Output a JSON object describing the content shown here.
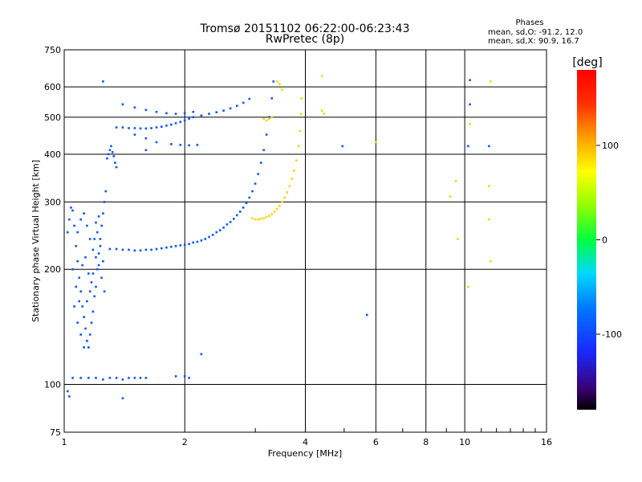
{
  "chart_data": {
    "type": "scatter",
    "title": "Tromsø 20151102 06:22:00-06:23:43",
    "subtitle": "RwPretec (8p)",
    "xlabel": "Frequency [MHz]",
    "ylabel": "Stationary phase Virtual Height [km]",
    "x_scale": "log",
    "y_scale": "log",
    "xlim": [
      1,
      16
    ],
    "ylim": [
      75,
      750
    ],
    "x_ticks": [
      1,
      2,
      4,
      6,
      8,
      10,
      16
    ],
    "x_tick_labels": [
      "1",
      "2",
      "4",
      "6",
      "8",
      "10",
      "16"
    ],
    "y_ticks": [
      75,
      100,
      200,
      300,
      400,
      500,
      600,
      750
    ],
    "y_tick_labels": [
      "75",
      "100",
      "200",
      "300",
      "400",
      "500",
      "600",
      "750"
    ],
    "grid": true,
    "info": {
      "heading": "Phases",
      "line1": "mean, sd,O: -91.2, 12.0",
      "line2": "mean, sd,X:  90.9, 16.7"
    },
    "colorbar": {
      "label": "[deg]",
      "range": [
        -180,
        180
      ],
      "ticks": [
        100,
        0,
        -100
      ],
      "tick_labels": [
        "100",
        "0",
        "-100"
      ]
    },
    "series": [
      {
        "name": "O",
        "phase_deg": -91.2,
        "points": [
          [
            1.02,
            250
          ],
          [
            1.03,
            270
          ],
          [
            1.04,
            290
          ],
          [
            1.05,
            285
          ],
          [
            1.06,
            260
          ],
          [
            1.07,
            230
          ],
          [
            1.08,
            210
          ],
          [
            1.09,
            190
          ],
          [
            1.1,
            175
          ],
          [
            1.11,
            160
          ],
          [
            1.12,
            150
          ],
          [
            1.13,
            140
          ],
          [
            1.14,
            130
          ],
          [
            1.15,
            125
          ],
          [
            1.16,
            135
          ],
          [
            1.17,
            145
          ],
          [
            1.18,
            155
          ],
          [
            1.19,
            170
          ],
          [
            1.2,
            180
          ],
          [
            1.21,
            200
          ],
          [
            1.22,
            220
          ],
          [
            1.23,
            240
          ],
          [
            1.24,
            260
          ],
          [
            1.25,
            280
          ],
          [
            1.26,
            300
          ],
          [
            1.27,
            320
          ],
          [
            1.05,
            200
          ],
          [
            1.07,
            180
          ],
          [
            1.09,
            165
          ],
          [
            1.11,
            205
          ],
          [
            1.13,
            215
          ],
          [
            1.15,
            195
          ],
          [
            1.17,
            185
          ],
          [
            1.19,
            240
          ],
          [
            1.21,
            250
          ],
          [
            1.23,
            230
          ],
          [
            1.25,
            210
          ],
          [
            1.08,
            250
          ],
          [
            1.1,
            270
          ],
          [
            1.12,
            280
          ],
          [
            1.14,
            260
          ],
          [
            1.16,
            240
          ],
          [
            1.18,
            225
          ],
          [
            1.2,
            215
          ],
          [
            1.22,
            205
          ],
          [
            1.24,
            190
          ],
          [
            1.26,
            175
          ],
          [
            1.06,
            160
          ],
          [
            1.08,
            145
          ],
          [
            1.1,
            135
          ],
          [
            1.12,
            125
          ],
          [
            1.14,
            165
          ],
          [
            1.16,
            175
          ],
          [
            1.18,
            195
          ],
          [
            1.2,
            265
          ],
          [
            1.22,
            275
          ],
          [
            1.28,
            390
          ],
          [
            1.29,
            400
          ],
          [
            1.3,
            410
          ],
          [
            1.31,
            420
          ],
          [
            1.32,
            405
          ],
          [
            1.33,
            395
          ],
          [
            1.34,
            380
          ],
          [
            1.35,
            370
          ],
          [
            1.3,
            226
          ],
          [
            1.35,
            226
          ],
          [
            1.4,
            225
          ],
          [
            1.45,
            225
          ],
          [
            1.5,
            224
          ],
          [
            1.55,
            224
          ],
          [
            1.6,
            225
          ],
          [
            1.65,
            225
          ],
          [
            1.7,
            226
          ],
          [
            1.75,
            227
          ],
          [
            1.8,
            228
          ],
          [
            1.85,
            229
          ],
          [
            1.9,
            230
          ],
          [
            1.95,
            231
          ],
          [
            2.0,
            232
          ],
          [
            2.05,
            233
          ],
          [
            2.1,
            235
          ],
          [
            2.15,
            236
          ],
          [
            2.2,
            238
          ],
          [
            2.25,
            240
          ],
          [
            2.3,
            243
          ],
          [
            2.35,
            246
          ],
          [
            2.4,
            250
          ],
          [
            2.45,
            253
          ],
          [
            2.5,
            257
          ],
          [
            2.55,
            262
          ],
          [
            2.6,
            266
          ],
          [
            2.65,
            271
          ],
          [
            2.7,
            277
          ],
          [
            2.75,
            283
          ],
          [
            2.8,
            290
          ],
          [
            2.85,
            298
          ],
          [
            2.9,
            308
          ],
          [
            2.95,
            320
          ],
          [
            3.0,
            335
          ],
          [
            3.05,
            355
          ],
          [
            3.1,
            380
          ],
          [
            3.15,
            410
          ],
          [
            3.2,
            450
          ],
          [
            3.25,
            500
          ],
          [
            3.3,
            560
          ],
          [
            3.33,
            620
          ],
          [
            1.35,
            470
          ],
          [
            1.4,
            470
          ],
          [
            1.45,
            468
          ],
          [
            1.5,
            468
          ],
          [
            1.55,
            467
          ],
          [
            1.6,
            467
          ],
          [
            1.65,
            468
          ],
          [
            1.7,
            470
          ],
          [
            1.75,
            472
          ],
          [
            1.8,
            475
          ],
          [
            1.85,
            478
          ],
          [
            1.9,
            482
          ],
          [
            1.95,
            486
          ],
          [
            2.0,
            490
          ],
          [
            2.05,
            495
          ],
          [
            2.1,
            500
          ],
          [
            2.2,
            505
          ],
          [
            2.3,
            510
          ],
          [
            2.4,
            515
          ],
          [
            2.5,
            520
          ],
          [
            2.6,
            527
          ],
          [
            2.7,
            535
          ],
          [
            2.8,
            545
          ],
          [
            2.9,
            558
          ],
          [
            1.4,
            540
          ],
          [
            1.5,
            530
          ],
          [
            1.6,
            522
          ],
          [
            1.7,
            516
          ],
          [
            1.8,
            512
          ],
          [
            1.9,
            510
          ],
          [
            2.0,
            512
          ],
          [
            2.1,
            516
          ],
          [
            1.85,
            425
          ],
          [
            1.95,
            423
          ],
          [
            2.05,
            422
          ],
          [
            2.15,
            423
          ],
          [
            1.7,
            430
          ],
          [
            1.6,
            440
          ],
          [
            1.5,
            450
          ],
          [
            1.05,
            104
          ],
          [
            1.1,
            104
          ],
          [
            1.15,
            104
          ],
          [
            1.2,
            104
          ],
          [
            1.25,
            103
          ],
          [
            1.3,
            104
          ],
          [
            1.35,
            104
          ],
          [
            1.4,
            103
          ],
          [
            1.45,
            104
          ],
          [
            1.5,
            104
          ],
          [
            1.55,
            104
          ],
          [
            1.6,
            104
          ],
          [
            1.9,
            105
          ],
          [
            2.0,
            105
          ],
          [
            2.05,
            104
          ],
          [
            1.02,
            96
          ],
          [
            1.03,
            93
          ],
          [
            1.4,
            92
          ],
          [
            1.25,
            620
          ],
          [
            1.6,
            410
          ],
          [
            2.2,
            120
          ],
          [
            4.95,
            420
          ],
          [
            5.7,
            152
          ],
          [
            10.3,
            625
          ],
          [
            10.2,
            420
          ],
          [
            11.5,
            420
          ],
          [
            10.3,
            540
          ]
        ]
      },
      {
        "name": "X",
        "phase_deg": 90.9,
        "points": [
          [
            2.95,
            272
          ],
          [
            3.0,
            270
          ],
          [
            3.05,
            270
          ],
          [
            3.1,
            271
          ],
          [
            3.15,
            272
          ],
          [
            3.2,
            274
          ],
          [
            3.25,
            276
          ],
          [
            3.3,
            279
          ],
          [
            3.35,
            283
          ],
          [
            3.4,
            288
          ],
          [
            3.45,
            293
          ],
          [
            3.5,
            300
          ],
          [
            3.55,
            308
          ],
          [
            3.6,
            318
          ],
          [
            3.65,
            330
          ],
          [
            3.7,
            345
          ],
          [
            3.75,
            362
          ],
          [
            3.8,
            385
          ],
          [
            3.85,
            420
          ],
          [
            3.88,
            460
          ],
          [
            3.9,
            510
          ],
          [
            3.91,
            560
          ],
          [
            3.2,
            490
          ],
          [
            3.25,
            495
          ],
          [
            3.3,
            500
          ],
          [
            3.15,
            495
          ],
          [
            3.45,
            610
          ],
          [
            3.5,
            590
          ],
          [
            3.4,
            620
          ],
          [
            4.4,
            520
          ],
          [
            4.45,
            510
          ],
          [
            4.4,
            640
          ],
          [
            6.0,
            430
          ],
          [
            9.5,
            340
          ],
          [
            9.2,
            310
          ],
          [
            11.5,
            330
          ],
          [
            11.6,
            620
          ],
          [
            10.3,
            480
          ],
          [
            9.6,
            240
          ],
          [
            11.5,
            270
          ],
          [
            11.6,
            210
          ],
          [
            10.2,
            180
          ]
        ]
      }
    ]
  }
}
